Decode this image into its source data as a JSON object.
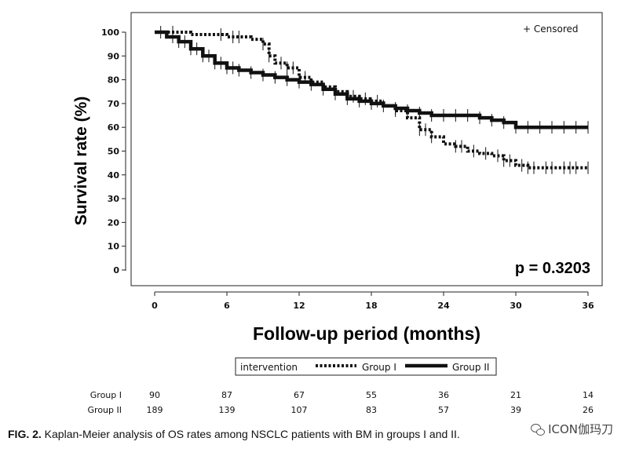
{
  "chart_data": {
    "type": "line",
    "subtype": "kaplan-meier",
    "title": "",
    "xlabel": "Follow-up period (months)",
    "ylabel": "Survival rate (%)",
    "xlim": [
      0,
      36
    ],
    "ylim": [
      0,
      100
    ],
    "xticks": [
      0,
      6,
      12,
      18,
      24,
      30,
      36
    ],
    "yticks": [
      0,
      10,
      20,
      30,
      40,
      50,
      60,
      70,
      80,
      90,
      100
    ],
    "grid": false,
    "censor_legend": "+ Censored",
    "annotation": "p = 0.3203",
    "legend": {
      "title": "intervention",
      "placement": "bottom",
      "entries": [
        "Group I",
        "Group II"
      ]
    },
    "series": [
      {
        "name": "Group I",
        "style": "dotted",
        "x": [
          0,
          1,
          2,
          3,
          4,
          5,
          6,
          7,
          8,
          9,
          9.5,
          10,
          11,
          12,
          13,
          14,
          15,
          16,
          17,
          18,
          19,
          20,
          21,
          22,
          23,
          24,
          25,
          26,
          27,
          28,
          29,
          30,
          31,
          32,
          33,
          34,
          35,
          36
        ],
        "y": [
          100,
          100,
          100,
          99,
          99,
          99,
          98,
          98,
          97,
          95,
          90,
          87,
          85,
          81,
          79,
          77,
          75,
          73,
          72,
          71,
          69,
          67,
          64,
          59,
          56,
          53,
          52,
          50,
          49,
          48,
          46,
          44,
          43,
          43,
          43,
          43,
          43,
          43
        ],
        "censored_x": [
          1.5,
          5.5,
          6.5,
          7,
          9,
          9.5,
          10.5,
          11,
          11.5,
          12.5,
          15,
          16.5,
          17.5,
          18.5,
          20,
          22,
          22.5,
          23,
          25,
          25.5,
          26.5,
          27.5,
          28.5,
          29,
          29.5,
          30.5,
          31,
          31.5,
          32.5,
          33,
          34,
          34.5,
          35,
          36
        ]
      },
      {
        "name": "Group II",
        "style": "solid",
        "x": [
          0,
          1,
          2,
          3,
          4,
          5,
          6,
          7,
          8,
          9,
          10,
          11,
          12,
          13,
          14,
          15,
          16,
          17,
          18,
          19,
          20,
          21,
          22,
          23,
          24,
          25,
          26,
          27,
          28,
          29,
          30,
          31,
          32,
          33,
          34,
          35,
          36
        ],
        "y": [
          100,
          98,
          96,
          93,
          90,
          87,
          85,
          84,
          83,
          82,
          81,
          80,
          79,
          78,
          76,
          74,
          72,
          71,
          70,
          69,
          68,
          67,
          66,
          65,
          65,
          65,
          65,
          64,
          63,
          62,
          60,
          60,
          60,
          60,
          60,
          60,
          60
        ],
        "censored_x": [
          0.5,
          1.5,
          2,
          2.5,
          3,
          3.5,
          4,
          4.5,
          5,
          5.5,
          6,
          6.5,
          7,
          8,
          9,
          10,
          11,
          12,
          13,
          14,
          15,
          16,
          17,
          18,
          19,
          20,
          21,
          22,
          23,
          24,
          25,
          26,
          27,
          28,
          29,
          30,
          31,
          32,
          33,
          34,
          35,
          36
        ]
      }
    ],
    "risk_table": {
      "times": [
        0,
        6,
        12,
        18,
        24,
        30,
        36
      ],
      "rows": [
        {
          "label": "Group I",
          "values": [
            "90",
            "87",
            "67",
            "55",
            "36",
            "21",
            "14"
          ]
        },
        {
          "label": "Group II",
          "values": [
            "189",
            "139",
            "107",
            "83",
            "57",
            "39",
            "26"
          ]
        }
      ]
    }
  },
  "caption": {
    "prefix": "FIG. 2.",
    "text": " Kaplan-Meier analysis of OS rates among NSCLC patients with BM in groups I and II."
  },
  "watermark": "ICON伽玛刀"
}
